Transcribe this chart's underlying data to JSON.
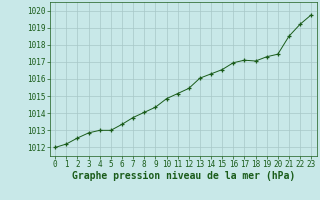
{
  "title": "Graphe pression niveau de la mer (hPa)",
  "x_values": [
    0,
    1,
    2,
    3,
    4,
    5,
    6,
    7,
    8,
    9,
    10,
    11,
    12,
    13,
    14,
    15,
    16,
    17,
    18,
    19,
    20,
    21,
    22,
    23
  ],
  "y_values": [
    1012.0,
    1012.2,
    1012.55,
    1012.85,
    1013.0,
    1013.0,
    1013.35,
    1013.75,
    1014.05,
    1014.35,
    1014.85,
    1015.15,
    1015.45,
    1016.05,
    1016.3,
    1016.55,
    1016.95,
    1017.1,
    1017.05,
    1017.3,
    1017.45,
    1018.5,
    1019.2,
    1019.75
  ],
  "ylim": [
    1011.5,
    1020.5
  ],
  "xlim": [
    -0.5,
    23.5
  ],
  "yticks": [
    1012,
    1013,
    1014,
    1015,
    1016,
    1017,
    1018,
    1019,
    1020
  ],
  "xticks": [
    0,
    1,
    2,
    3,
    4,
    5,
    6,
    7,
    8,
    9,
    10,
    11,
    12,
    13,
    14,
    15,
    16,
    17,
    18,
    19,
    20,
    21,
    22,
    23
  ],
  "line_color": "#1a5c1a",
  "marker_color": "#1a5c1a",
  "bg_color": "#c8e8e8",
  "grid_color": "#a8c8c8",
  "title_color": "#1a5c1a",
  "tick_color": "#1a5c1a",
  "title_fontsize": 7.0,
  "tick_fontsize": 5.5,
  "figwidth": 3.2,
  "figheight": 2.0,
  "dpi": 100
}
